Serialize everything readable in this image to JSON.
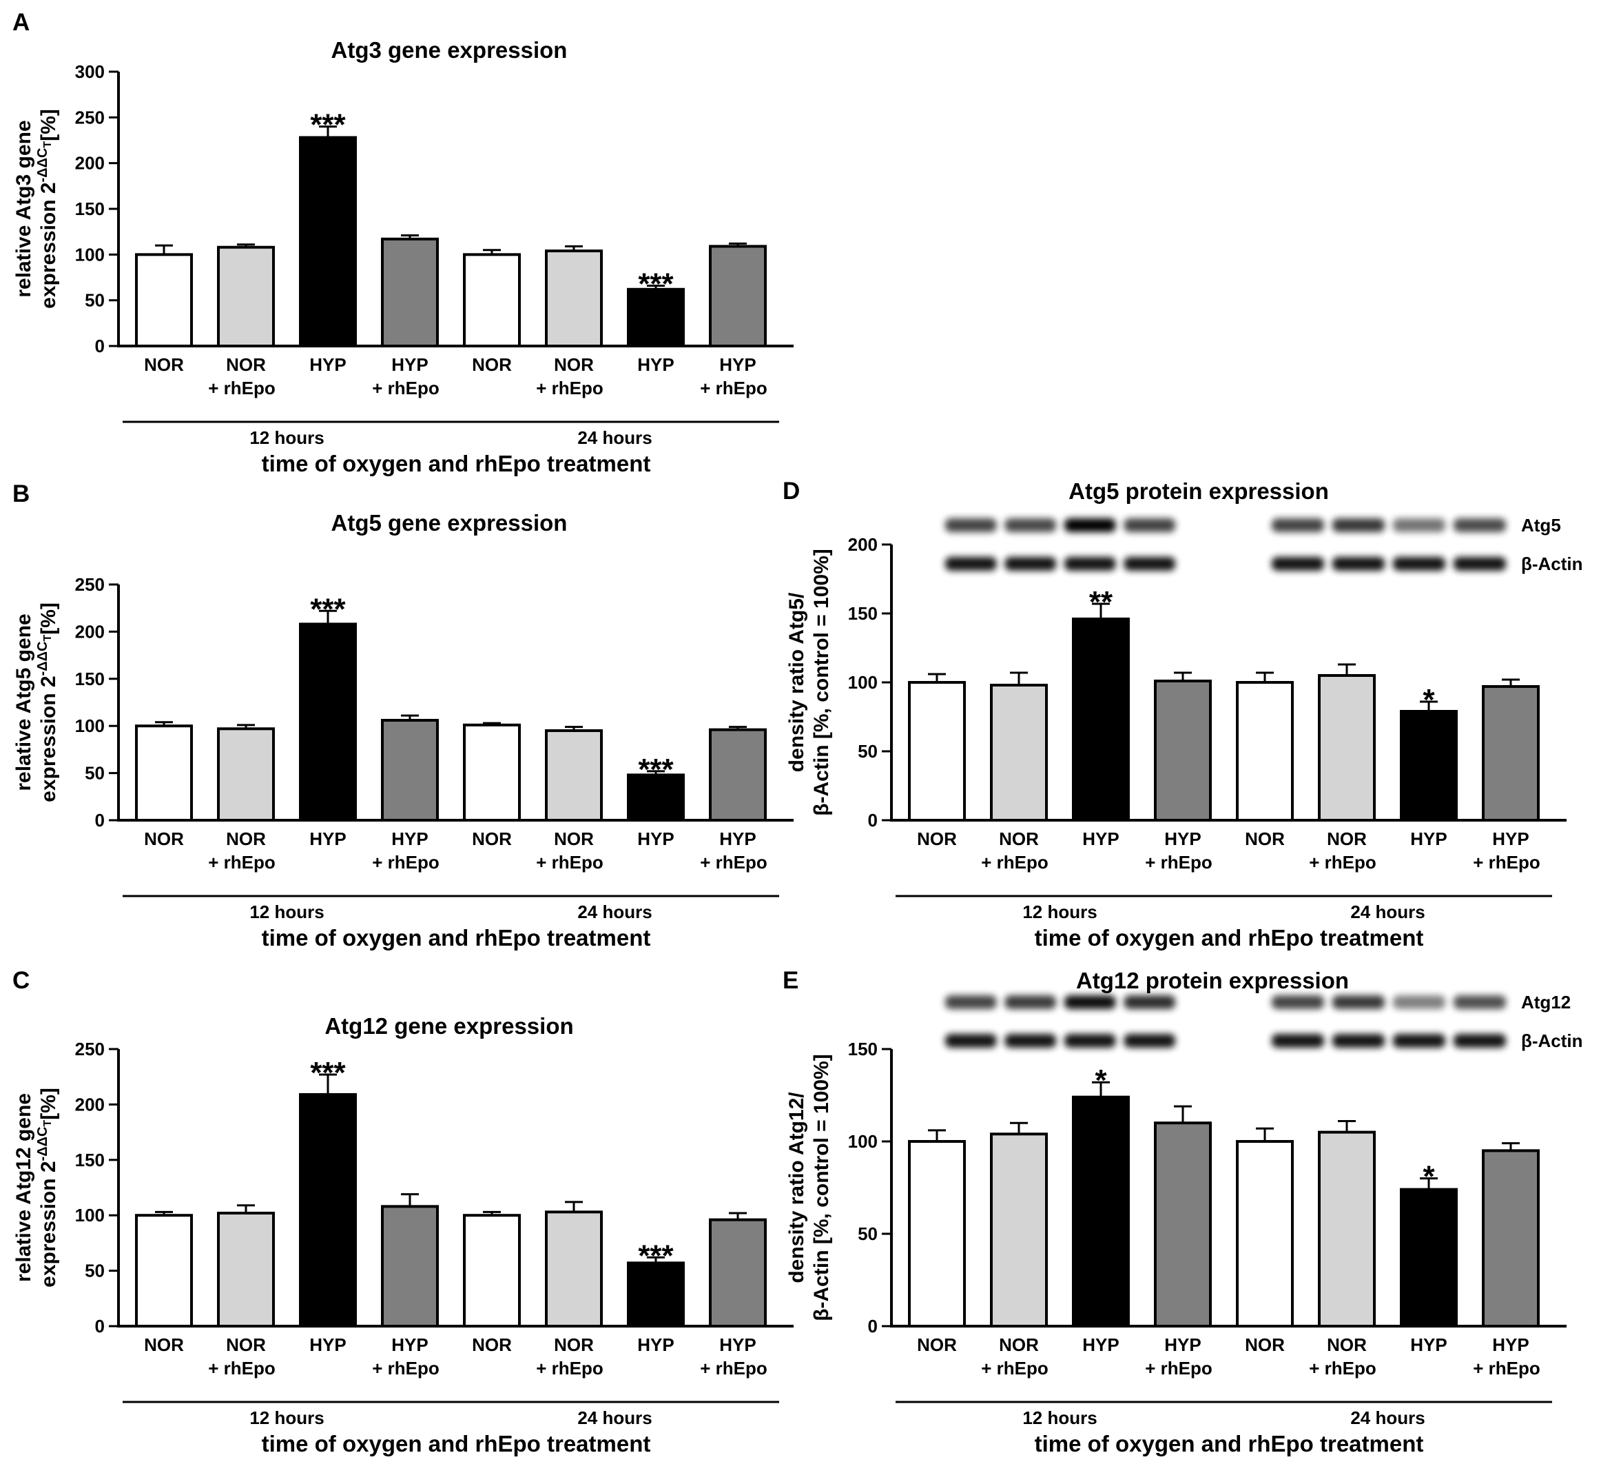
{
  "categories": [
    "NOR",
    "NOR\n+ rhEpo",
    "HYP",
    "HYP\n+ rhEpo",
    "NOR",
    "NOR\n+ rhEpo",
    "HYP",
    "HYP\n+ rhEpo"
  ],
  "groups": [
    "12 hours",
    "24 hours"
  ],
  "xlabel": "time of oxygen and rhEpo treatment",
  "colors": {
    "NOR": "#ffffff",
    "NOR_rhEpo": "#d4d4d4",
    "HYP": "#000000",
    "HYP_rhEpo": "#7f7f7f"
  },
  "chart_data": [
    {
      "panel": "A",
      "type": "bar",
      "title": "Atg3 gene expression",
      "ylabel_line1": "relative Atg3 gene",
      "ylabel_line2": "expression 2",
      "ylabel_sup": "-ΔΔC",
      "ylabel_sub": "T",
      "ylabel_end": "[%]",
      "ylim": [
        0,
        300
      ],
      "yticks": [
        0,
        50,
        100,
        150,
        200,
        250,
        300
      ],
      "values": [
        100,
        108,
        228,
        117,
        100,
        104,
        62,
        109
      ],
      "errors": [
        10,
        3,
        12,
        4,
        5,
        5,
        4,
        3
      ],
      "significance": [
        "",
        "",
        "***",
        "",
        "",
        "",
        "***",
        ""
      ]
    },
    {
      "panel": "B",
      "type": "bar",
      "title": "Atg5 gene expression",
      "ylabel_line1": "relative Atg5 gene",
      "ylabel_line2": "expression 2",
      "ylabel_sup": "-ΔΔC",
      "ylabel_sub": "T",
      "ylabel_end": "[%]",
      "ylim": [
        0,
        250
      ],
      "yticks": [
        0,
        50,
        100,
        150,
        200,
        250
      ],
      "values": [
        100,
        97,
        208,
        106,
        101,
        95,
        48,
        96
      ],
      "errors": [
        4,
        4,
        14,
        5,
        2,
        4,
        4,
        3
      ],
      "significance": [
        "",
        "",
        "***",
        "",
        "",
        "",
        "***",
        ""
      ]
    },
    {
      "panel": "C",
      "type": "bar",
      "title": "Atg12 gene expression",
      "ylabel_line1": "relative Atg12 gene",
      "ylabel_line2": "expression 2",
      "ylabel_sup": "-ΔΔC",
      "ylabel_sub": "T",
      "ylabel_end": "[%]",
      "ylim": [
        0,
        250
      ],
      "yticks": [
        0,
        50,
        100,
        150,
        200,
        250
      ],
      "values": [
        100,
        102,
        209,
        108,
        100,
        103,
        57,
        96
      ],
      "errors": [
        3,
        7,
        18,
        11,
        3,
        9,
        5,
        6
      ],
      "significance": [
        "",
        "",
        "***",
        "",
        "",
        "",
        "***",
        ""
      ]
    },
    {
      "panel": "D",
      "type": "bar",
      "title": "Atg5 protein expression",
      "ylabel_line1": "density ratio Atg5/",
      "ylabel_line2": "β-Actin [%, control = 100%]",
      "ylim": [
        0,
        200
      ],
      "yticks": [
        0,
        50,
        100,
        150,
        200
      ],
      "values": [
        100,
        98,
        146,
        101,
        100,
        105,
        79,
        97
      ],
      "errors": [
        6,
        9,
        11,
        6,
        7,
        8,
        7,
        5
      ],
      "significance": [
        "",
        "",
        "**",
        "",
        "",
        "",
        "*",
        ""
      ],
      "bands": [
        "Atg5",
        "β-Actin"
      ]
    },
    {
      "panel": "E",
      "type": "bar",
      "title": "Atg12 protein expression",
      "ylabel_line1": "density ratio Atg12/",
      "ylabel_line2": "β-Actin [%, control = 100%]",
      "ylim": [
        0,
        150
      ],
      "yticks": [
        0,
        50,
        100,
        150
      ],
      "values": [
        100,
        104,
        124,
        110,
        100,
        105,
        74,
        95
      ],
      "errors": [
        6,
        6,
        8,
        9,
        7,
        6,
        6,
        4
      ],
      "significance": [
        "",
        "",
        "*",
        "",
        "",
        "",
        "*",
        ""
      ],
      "bands": [
        "Atg12",
        "β-Actin"
      ]
    }
  ]
}
